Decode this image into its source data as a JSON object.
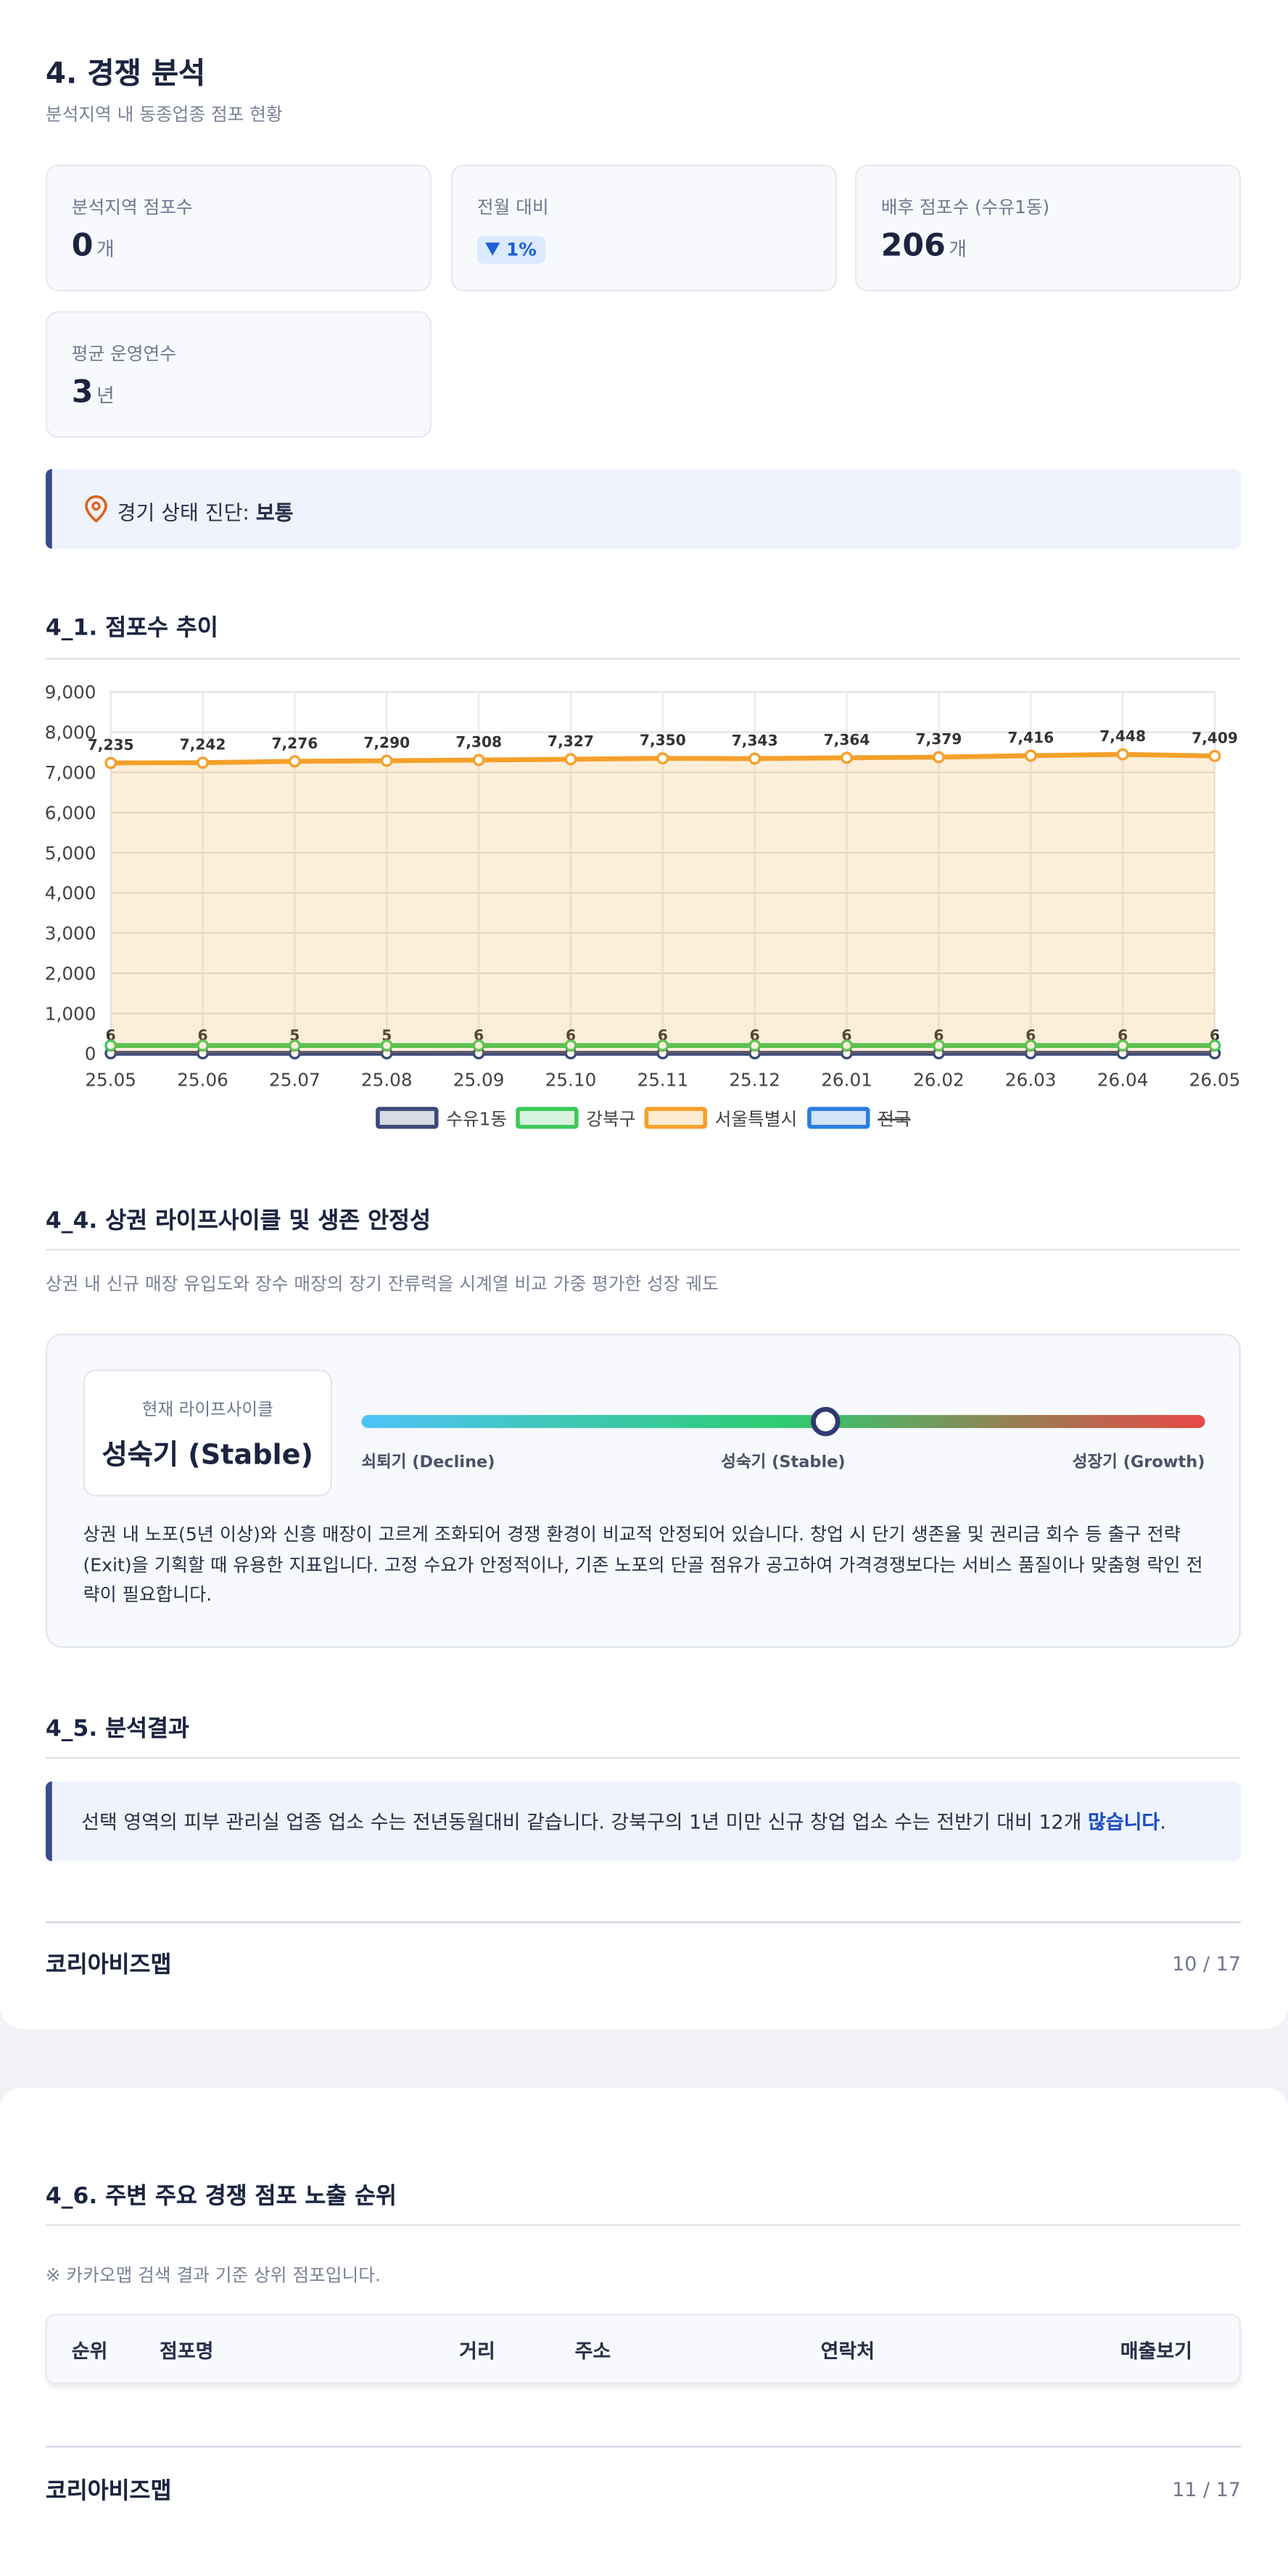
{
  "header": {
    "title": "4. 경쟁 분석",
    "subtitle": "분석지역 내 동종업종 점포 현황"
  },
  "stats": [
    {
      "label": "분석지역 점포수",
      "value": "0",
      "unit": "개"
    },
    {
      "label": "전월 대비",
      "badge": "1%"
    },
    {
      "label": "배후 점포수 (수유1동)",
      "value": "206",
      "unit": "개"
    },
    {
      "label": "평균 운영연수",
      "value": "3",
      "unit": "년"
    }
  ],
  "diagnosis": {
    "label": "경기 상태 진단:",
    "value": "보통"
  },
  "trend": {
    "heading": "4_1. 점포수 추이"
  },
  "chart_data": {
    "type": "line",
    "categories": [
      "25.05",
      "25.06",
      "25.07",
      "25.08",
      "25.09",
      "25.10",
      "25.11",
      "25.12",
      "26.01",
      "26.02",
      "26.03",
      "26.04",
      "26.05"
    ],
    "series": [
      {
        "name": "수유1동",
        "color": "#3b4a7a",
        "values": [
          6,
          6,
          5,
          5,
          6,
          6,
          6,
          6,
          6,
          6,
          6,
          6,
          6
        ]
      },
      {
        "name": "강북구",
        "color": "#3cc95a",
        "values": [
          200,
          200,
          200,
          200,
          200,
          200,
          200,
          200,
          200,
          200,
          200,
          200,
          200
        ]
      },
      {
        "name": "서울특별시",
        "color": "#f5a02a",
        "area": true,
        "values": [
          7235,
          7242,
          7276,
          7290,
          7308,
          7327,
          7350,
          7343,
          7364,
          7379,
          7416,
          7448,
          7409
        ],
        "value_labels": [
          "7,235",
          "7,242",
          "7,276",
          "7,290",
          "7,308",
          "7,327",
          "7,350",
          "7,343",
          "7,364",
          "7,379",
          "7,416",
          "7,448",
          "7,409"
        ]
      },
      {
        "name": "전국",
        "color": "#2a7de1",
        "hidden": true
      }
    ],
    "ylim": [
      0,
      9000
    ],
    "yticks": [
      0,
      {
        "value": 1000,
        "label": "1,000"
      },
      {
        "value": 2000,
        "label": "2,000"
      },
      {
        "value": 3000,
        "label": "3,000"
      },
      {
        "value": 4000,
        "label": "4,000"
      },
      {
        "value": 5000,
        "label": "5,000"
      },
      {
        "value": 6000,
        "label": "6,000"
      },
      {
        "value": 7000,
        "label": "7,000"
      },
      {
        "value": 8000,
        "label": "8,000"
      },
      {
        "value": 9000,
        "label": "9,000"
      }
    ],
    "grid": true,
    "legend": "bottom"
  },
  "lifecycle": {
    "heading": "4_4. 상권 라이프사이클 및 생존 안정성",
    "description": "상권 내 신규 매장 유입도와 장수 매장의 장기 잔류력을 시계열 비교 가중 평가한 성장 궤도",
    "current_label": "현재 라이프사이클",
    "current_value": "성숙기 (Stable)",
    "scale_labels": [
      "쇠퇴기 (Decline)",
      "성숙기 (Stable)",
      "성장기 (Growth)"
    ],
    "position": 55,
    "text": "상권 내 노포(5년 이상)와 신흥 매장이 고르게 조화되어 경쟁 환경이 비교적 안정되어 있습니다. 창업 시 단기 생존율 및 권리금 회수 등 출구 전략(Exit)을 기획할 때 유용한 지표입니다. 고정 수요가 안정적이나, 기존 노포의 단골 점유가 공고하여 가격경쟁보다는 서비스 품질이나 맞춤형 락인 전략이 필요합니다."
  },
  "result": {
    "heading": "4_5. 분석결과",
    "text": "선택 영역의 피부 관리실 업종 업소 수는 전년동월대비 같습니다. 강북구의 1년 미만 신규 창업 업소 수는 전반기 대비 12개 ",
    "emphasis": "많습니다",
    "end": "."
  },
  "footer1": {
    "brand": "코리아비즈맵",
    "page": "10 / 17"
  },
  "ranking": {
    "heading": "4_6. 주변 주요 경쟁 점포 노출 순위",
    "note": "※ 카카오맵 검색 결과 기준 상위 점포입니다.",
    "columns": [
      "순위",
      "점포명",
      "거리",
      "주소",
      "연락처",
      "매출보기"
    ]
  },
  "footer2": {
    "brand": "코리아비즈맵",
    "page": "11 / 17"
  }
}
